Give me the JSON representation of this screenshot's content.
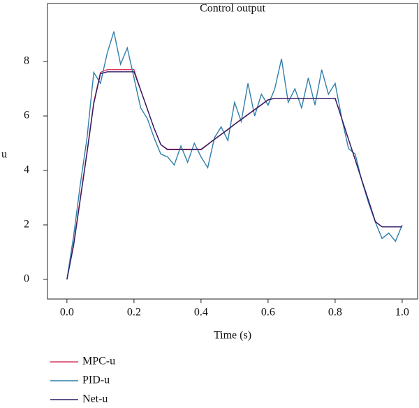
{
  "chart_data": {
    "type": "line",
    "title": "Control output",
    "x_label": "Time (s)",
    "y_label": "u",
    "x": [
      0,
      0.02,
      0.04,
      0.06,
      0.08,
      0.1,
      0.12,
      0.14,
      0.16,
      0.18,
      0.2,
      0.22,
      0.24,
      0.26,
      0.28,
      0.3,
      0.32,
      0.34,
      0.36,
      0.38,
      0.4,
      0.42,
      0.44,
      0.46,
      0.48,
      0.5,
      0.52,
      0.54,
      0.56,
      0.58,
      0.6,
      0.62,
      0.64,
      0.66,
      0.68,
      0.7,
      0.72,
      0.74,
      0.76,
      0.78,
      0.8,
      0.82,
      0.84,
      0.86,
      0.88,
      0.9,
      0.92,
      0.94,
      0.96,
      0.98,
      1.0
    ],
    "series": [
      {
        "name": "MPC-u",
        "color": "#d9365e",
        "values": [
          0,
          1.3,
          3.0,
          4.7,
          6.5,
          7.6,
          7.7,
          7.7,
          7.7,
          7.7,
          7.7,
          6.95,
          6.25,
          5.55,
          4.95,
          4.78,
          4.78,
          4.78,
          4.78,
          4.78,
          4.78,
          4.96,
          5.15,
          5.33,
          5.51,
          5.7,
          5.88,
          6.06,
          6.24,
          6.42,
          6.6,
          6.65,
          6.65,
          6.65,
          6.65,
          6.65,
          6.65,
          6.65,
          6.65,
          6.65,
          6.65,
          5.9,
          5.14,
          4.39,
          3.63,
          2.88,
          2.12,
          1.93,
          1.93,
          1.93,
          1.93
        ]
      },
      {
        "name": "PID-u",
        "color": "#2f7fab",
        "values": [
          0,
          1.6,
          3.5,
          5.2,
          7.6,
          7.2,
          8.3,
          9.1,
          7.9,
          8.5,
          7.4,
          6.3,
          5.9,
          5.2,
          4.6,
          4.5,
          4.2,
          4.9,
          4.3,
          5.0,
          4.5,
          4.1,
          5.2,
          5.6,
          5.1,
          6.5,
          5.8,
          7.2,
          6.0,
          6.8,
          6.4,
          7.0,
          8.1,
          6.5,
          7.0,
          6.3,
          7.4,
          6.4,
          7.7,
          6.8,
          7.2,
          5.9,
          4.8,
          4.6,
          3.6,
          2.8,
          2.1,
          1.5,
          1.7,
          1.4,
          2.0
        ]
      },
      {
        "name": "Net-u",
        "color": "#2e1c66",
        "values": [
          0,
          1.25,
          2.95,
          4.65,
          6.45,
          7.55,
          7.62,
          7.62,
          7.62,
          7.62,
          7.62,
          6.95,
          6.25,
          5.55,
          4.95,
          4.76,
          4.76,
          4.76,
          4.76,
          4.76,
          4.76,
          4.95,
          5.14,
          5.32,
          5.5,
          5.69,
          5.87,
          6.05,
          6.23,
          6.41,
          6.59,
          6.65,
          6.65,
          6.65,
          6.65,
          6.65,
          6.65,
          6.65,
          6.65,
          6.65,
          6.65,
          5.9,
          5.14,
          4.39,
          3.63,
          2.88,
          2.12,
          1.93,
          1.93,
          1.93,
          1.93
        ]
      }
    ],
    "xlim": [
      -0.058,
      1.046
    ],
    "ylim": [
      -0.72,
      10.13
    ],
    "xticks": [
      {
        "value": 0,
        "label": "0.0"
      },
      0.2,
      0.4,
      0.6,
      0.8,
      {
        "value": 1,
        "label": "1.0"
      }
    ],
    "yticks": [
      0,
      2,
      4,
      6,
      8
    ]
  }
}
